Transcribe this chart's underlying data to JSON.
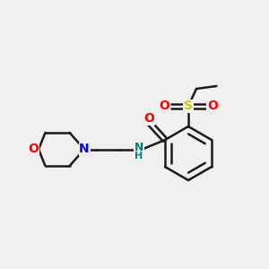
{
  "background_color": "#f0f0f0",
  "bond_color": "#1a1a1a",
  "N_color": "#0000ff",
  "O_color": "#ff0000",
  "S_color": "#cccc00",
  "NH_color": "#008080",
  "figsize": [
    3.0,
    3.0
  ],
  "dpi": 100,
  "xlim": [
    0,
    10
  ],
  "ylim": [
    0,
    10
  ]
}
